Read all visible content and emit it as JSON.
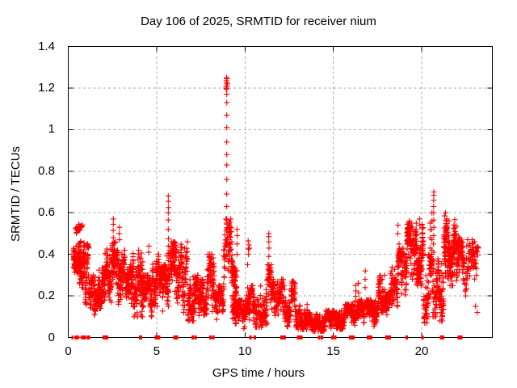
{
  "window": {
    "background": "#ffffff"
  },
  "colors": {
    "marker": "#ff0000",
    "axis": "#000000",
    "grid": "#a8a8a8",
    "text": "#000000",
    "background": "#ffffff"
  },
  "chart_data": {
    "type": "scatter",
    "title": "Day 106 of 2025, SRMTID for receiver nium",
    "xlabel": "GPS time / hours",
    "ylabel": "SRMTID / TECUs",
    "xlim": [
      0,
      24
    ],
    "ylim": [
      0,
      1.4
    ],
    "xticks": [
      {
        "v": 0,
        "label": "0"
      },
      {
        "v": 5,
        "label": "5"
      },
      {
        "v": 10,
        "label": "10"
      },
      {
        "v": 15,
        "label": "15"
      },
      {
        "v": 20,
        "label": "20"
      }
    ],
    "yticks": [
      {
        "v": 0.0,
        "label": "0"
      },
      {
        "v": 0.2,
        "label": "0.2"
      },
      {
        "v": 0.4,
        "label": "0.4"
      },
      {
        "v": 0.6,
        "label": "0.6"
      },
      {
        "v": 0.8,
        "label": "0.8"
      },
      {
        "v": 1.0,
        "label": "1"
      },
      {
        "v": 1.2,
        "label": "1.2"
      },
      {
        "v": 1.4,
        "label": "1.4"
      }
    ],
    "grid": true,
    "legend": null,
    "marker": "plus",
    "marker_color": "#ff0000",
    "series_name": "SRMTID",
    "bands_comment": "dense scatter envelope read from plot: [t_start_h, t_end_h, y_min_TECU, y_max_TECU, approx_point_count]",
    "bands": [
      [
        0.28,
        0.55,
        0.28,
        0.46,
        45
      ],
      [
        0.4,
        0.8,
        0.5,
        0.56,
        25
      ],
      [
        0.55,
        0.95,
        0.24,
        0.47,
        85
      ],
      [
        0.95,
        1.15,
        0.16,
        0.45,
        45
      ],
      [
        1.15,
        1.55,
        0.11,
        0.3,
        70
      ],
      [
        1.55,
        2.05,
        0.14,
        0.34,
        95
      ],
      [
        2.05,
        2.45,
        0.17,
        0.43,
        80
      ],
      [
        2.45,
        2.7,
        0.22,
        0.46,
        45
      ],
      [
        2.7,
        3.25,
        0.16,
        0.42,
        110
      ],
      [
        3.25,
        3.65,
        0.12,
        0.35,
        75
      ],
      [
        3.65,
        4.25,
        0.1,
        0.42,
        115
      ],
      [
        4.25,
        4.75,
        0.1,
        0.3,
        90
      ],
      [
        4.75,
        5.15,
        0.15,
        0.4,
        75
      ],
      [
        5.15,
        5.55,
        0.12,
        0.35,
        70
      ],
      [
        5.55,
        5.85,
        0.15,
        0.42,
        55
      ],
      [
        5.85,
        6.25,
        0.15,
        0.46,
        75
      ],
      [
        6.25,
        6.75,
        0.12,
        0.46,
        95
      ],
      [
        6.75,
        7.35,
        0.08,
        0.3,
        105
      ],
      [
        7.35,
        7.85,
        0.1,
        0.28,
        90
      ],
      [
        7.85,
        8.25,
        0.1,
        0.4,
        75
      ],
      [
        8.25,
        8.78,
        0.08,
        0.25,
        85
      ],
      [
        8.78,
        9.25,
        0.2,
        0.57,
        75
      ],
      [
        9.25,
        9.55,
        0.1,
        0.4,
        55
      ],
      [
        9.3,
        10.1,
        0.04,
        0.18,
        150
      ],
      [
        10.1,
        10.45,
        0.08,
        0.25,
        50
      ],
      [
        10.45,
        11.25,
        0.05,
        0.25,
        130
      ],
      [
        11.25,
        11.5,
        0.12,
        0.35,
        40
      ],
      [
        11.5,
        12.25,
        0.06,
        0.28,
        115
      ],
      [
        12.25,
        12.6,
        0.05,
        0.18,
        55
      ],
      [
        12.6,
        12.85,
        0.06,
        0.27,
        40
      ],
      [
        12.85,
        13.55,
        0.04,
        0.16,
        110
      ],
      [
        13.55,
        14.55,
        0.03,
        0.12,
        155
      ],
      [
        14.55,
        15.55,
        0.04,
        0.13,
        155
      ],
      [
        15.55,
        16.25,
        0.04,
        0.16,
        110
      ],
      [
        16.25,
        16.6,
        0.08,
        0.3,
        50
      ],
      [
        16.6,
        17.55,
        0.05,
        0.18,
        145
      ],
      [
        17.55,
        17.95,
        0.12,
        0.3,
        65
      ],
      [
        17.95,
        18.25,
        0.08,
        0.22,
        50
      ],
      [
        18.25,
        18.65,
        0.15,
        0.36,
        65
      ],
      [
        18.65,
        19.15,
        0.2,
        0.43,
        85
      ],
      [
        19.15,
        19.7,
        0.28,
        0.55,
        110
      ],
      [
        19.7,
        20.1,
        0.25,
        0.55,
        80
      ],
      [
        20.1,
        20.4,
        0.07,
        0.3,
        55
      ],
      [
        20.4,
        20.85,
        0.1,
        0.4,
        70
      ],
      [
        20.85,
        21.25,
        0.08,
        0.38,
        70
      ],
      [
        21.25,
        21.95,
        0.25,
        0.57,
        150
      ],
      [
        21.95,
        22.35,
        0.2,
        0.48,
        75
      ],
      [
        22.35,
        22.75,
        0.2,
        0.45,
        40
      ],
      [
        22.75,
        23.2,
        0.25,
        0.47,
        45
      ]
    ],
    "points_comment": "individually readable points (spike ladders and isolated markers), [hours, TECU]",
    "points": [
      [
        8.97,
        0.45
      ],
      [
        8.97,
        0.47
      ],
      [
        8.97,
        0.52
      ],
      [
        8.97,
        0.57
      ],
      [
        8.97,
        0.63
      ],
      [
        8.97,
        0.69
      ],
      [
        8.97,
        0.76
      ],
      [
        8.97,
        0.83
      ],
      [
        8.97,
        0.88
      ],
      [
        8.97,
        0.94
      ],
      [
        8.97,
        1.01
      ],
      [
        8.97,
        1.07
      ],
      [
        8.97,
        1.13
      ],
      [
        8.97,
        1.17
      ],
      [
        8.96,
        1.195
      ],
      [
        8.94,
        1.21
      ],
      [
        8.99,
        1.21
      ],
      [
        8.97,
        1.225
      ],
      [
        8.95,
        1.235
      ],
      [
        8.98,
        1.245
      ],
      [
        8.96,
        1.25
      ],
      [
        9.0,
        1.22
      ],
      [
        8.93,
        1.2
      ],
      [
        5.66,
        0.3
      ],
      [
        5.66,
        0.335
      ],
      [
        5.66,
        0.37
      ],
      [
        5.66,
        0.405
      ],
      [
        5.66,
        0.44
      ],
      [
        5.67,
        0.475
      ],
      [
        5.66,
        0.52
      ],
      [
        5.66,
        0.565
      ],
      [
        5.66,
        0.6
      ],
      [
        5.67,
        0.625
      ],
      [
        5.66,
        0.655
      ],
      [
        5.66,
        0.68
      ],
      [
        20.68,
        0.33
      ],
      [
        20.68,
        0.37
      ],
      [
        20.68,
        0.41
      ],
      [
        20.67,
        0.45
      ],
      [
        20.68,
        0.49
      ],
      [
        20.69,
        0.53
      ],
      [
        20.68,
        0.565
      ],
      [
        20.68,
        0.6
      ],
      [
        20.67,
        0.63
      ],
      [
        20.68,
        0.66
      ],
      [
        20.68,
        0.685
      ],
      [
        20.69,
        0.7
      ],
      [
        20.58,
        0.42
      ],
      [
        20.58,
        0.47
      ],
      [
        20.57,
        0.52
      ],
      [
        20.58,
        0.56
      ],
      [
        20.58,
        0.6
      ],
      [
        20.48,
        0.38
      ],
      [
        20.48,
        0.43
      ],
      [
        20.49,
        0.48
      ],
      [
        20.48,
        0.52
      ],
      [
        20.48,
        0.55
      ],
      [
        2.55,
        0.45
      ],
      [
        2.55,
        0.48
      ],
      [
        2.54,
        0.515
      ],
      [
        2.55,
        0.545
      ],
      [
        2.55,
        0.57
      ],
      [
        2.9,
        0.47
      ],
      [
        2.88,
        0.5
      ],
      [
        2.9,
        0.53
      ],
      [
        4.55,
        0.41
      ],
      [
        4.56,
        0.44
      ],
      [
        9.12,
        0.5
      ],
      [
        9.15,
        0.53
      ],
      [
        9.1,
        0.55
      ],
      [
        9.18,
        0.51
      ],
      [
        9.55,
        0.4
      ],
      [
        9.55,
        0.45
      ],
      [
        9.56,
        0.49
      ],
      [
        9.55,
        0.52
      ],
      [
        10.15,
        0.35
      ],
      [
        10.2,
        0.4
      ],
      [
        10.2,
        0.425
      ],
      [
        10.22,
        0.445
      ],
      [
        10.18,
        0.465
      ],
      [
        10.25,
        0.43
      ],
      [
        11.35,
        0.35
      ],
      [
        11.35,
        0.39
      ],
      [
        11.36,
        0.43
      ],
      [
        11.35,
        0.46
      ],
      [
        11.34,
        0.485
      ],
      [
        11.35,
        0.5
      ],
      [
        12.7,
        0.22
      ],
      [
        12.7,
        0.26
      ],
      [
        16.4,
        0.26
      ],
      [
        16.8,
        0.24
      ],
      [
        16.8,
        0.28
      ],
      [
        16.81,
        0.32
      ],
      [
        17.9,
        0.3
      ],
      [
        18.3,
        0.32
      ],
      [
        18.7,
        0.42
      ],
      [
        18.72,
        0.45
      ],
      [
        18.65,
        0.5
      ],
      [
        18.66,
        0.54
      ],
      [
        19.28,
        0.47
      ],
      [
        19.3,
        0.5
      ],
      [
        19.3,
        0.53
      ],
      [
        19.31,
        0.56
      ],
      [
        19.88,
        0.57
      ],
      [
        19.9,
        0.54
      ],
      [
        21.3,
        0.585
      ],
      [
        21.35,
        0.6
      ],
      [
        21.42,
        0.57
      ],
      [
        21.55,
        0.56
      ],
      [
        22.55,
        0.44
      ],
      [
        22.6,
        0.47
      ],
      [
        22.9,
        0.45
      ],
      [
        22.95,
        0.42
      ],
      [
        23.0,
        0.46
      ],
      [
        23.0,
        0.4
      ],
      [
        23.05,
        0.43
      ],
      [
        23.1,
        0.3
      ],
      [
        23.05,
        0.15
      ],
      [
        23.15,
        0.12
      ]
    ],
    "zero_markers_comment": "red marks sitting on the y=0 axis line, [hours, width_px]",
    "zero_markers": [
      [
        0.23,
        2
      ],
      [
        0.48,
        5
      ],
      [
        0.87,
        6
      ],
      [
        1.1,
        2
      ],
      [
        1.19,
        2
      ],
      [
        2.1,
        7
      ],
      [
        4.1,
        4
      ],
      [
        5.05,
        7
      ],
      [
        6.0,
        3
      ],
      [
        6.15,
        3
      ],
      [
        7.05,
        3
      ],
      [
        7.2,
        3
      ],
      [
        8.05,
        3
      ],
      [
        8.2,
        3
      ],
      [
        10.3,
        3
      ],
      [
        10.55,
        3
      ],
      [
        12.15,
        7
      ],
      [
        13.1,
        7
      ],
      [
        14.2,
        3
      ],
      [
        14.35,
        3
      ],
      [
        14.95,
        3
      ],
      [
        15.1,
        3
      ],
      [
        16.05,
        7
      ],
      [
        17.05,
        7
      ],
      [
        18.1,
        7
      ],
      [
        19.15,
        3
      ],
      [
        20.05,
        3
      ],
      [
        21.1,
        3
      ],
      [
        21.22,
        3
      ],
      [
        22.1,
        3
      ],
      [
        22.25,
        3
      ]
    ],
    "zero_baseline_run": [
      0.2,
      1.25
    ]
  }
}
